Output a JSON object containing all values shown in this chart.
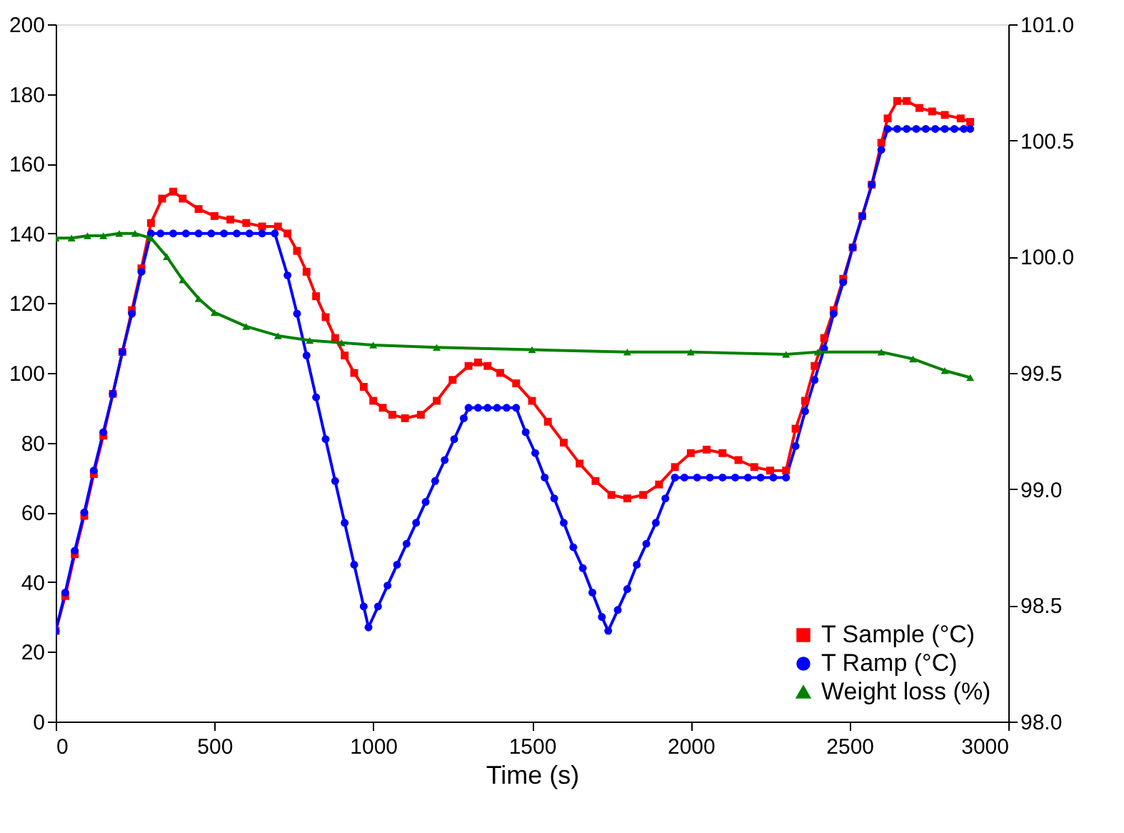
{
  "chart_data": {
    "type": "line",
    "xlabel": "Time (s)",
    "xlim": [
      0,
      3000
    ],
    "xticks": [
      0,
      500,
      1000,
      1500,
      2000,
      2500,
      3000
    ],
    "ylim": [
      0,
      200
    ],
    "yticks": [
      0,
      20,
      40,
      60,
      80,
      100,
      120,
      140,
      160,
      180,
      200
    ],
    "y2lim": [
      98,
      101
    ],
    "y2ticks": [
      {
        "value": 98,
        "label": "98.0"
      },
      {
        "value": 98.5,
        "label": "98.5"
      },
      {
        "value": 99,
        "label": "99.0"
      },
      {
        "value": 99.5,
        "label": "99.5"
      },
      {
        "value": 100,
        "label": "100.0"
      },
      {
        "value": 100.5,
        "label": "100.5"
      },
      {
        "value": 101,
        "label": "101.0"
      }
    ],
    "grid": false,
    "legend": "bottom right",
    "line_style": "solid",
    "series": [
      {
        "name": "T Sample (°C)",
        "color": "#ff0000",
        "marker": "square",
        "x": [
          0,
          30,
          60,
          90,
          120,
          150,
          180,
          210,
          240,
          270,
          300,
          335,
          370,
          400,
          450,
          500,
          550,
          600,
          650,
          700,
          730,
          760,
          790,
          820,
          850,
          880,
          910,
          940,
          970,
          1000,
          1030,
          1060,
          1100,
          1150,
          1200,
          1250,
          1300,
          1330,
          1360,
          1400,
          1450,
          1500,
          1550,
          1600,
          1650,
          1700,
          1750,
          1800,
          1850,
          1900,
          1950,
          2000,
          2050,
          2100,
          2150,
          2200,
          2250,
          2300,
          2330,
          2360,
          2390,
          2420,
          2450,
          2480,
          2510,
          2540,
          2570,
          2600,
          2620,
          2650,
          2680,
          2720,
          2760,
          2800,
          2850,
          2880
        ],
        "values": [
          26,
          36,
          48,
          59,
          71,
          82,
          94,
          106,
          118,
          130,
          143,
          150,
          152,
          150,
          147,
          145,
          144,
          143,
          142,
          142,
          140,
          135,
          129,
          122,
          116,
          110,
          105,
          100,
          96,
          92,
          90,
          88,
          87,
          88,
          92,
          98,
          102,
          103,
          102,
          100,
          97,
          92,
          86,
          80,
          74,
          69,
          65,
          64,
          65,
          68,
          73,
          77,
          78,
          77,
          75,
          73,
          72,
          72,
          84,
          92,
          102,
          110,
          118,
          127,
          136,
          145,
          154,
          166,
          173,
          178,
          178,
          176,
          175,
          174,
          173,
          172
        ]
      },
      {
        "name": "T Ramp (°C)",
        "color": "#0000ff",
        "marker": "circle",
        "x": [
          0,
          30,
          60,
          90,
          120,
          150,
          180,
          210,
          240,
          270,
          300,
          330,
          370,
          410,
          450,
          490,
          530,
          570,
          610,
          650,
          690,
          730,
          760,
          790,
          820,
          850,
          880,
          910,
          940,
          970,
          985,
          1015,
          1045,
          1075,
          1105,
          1135,
          1165,
          1195,
          1225,
          1255,
          1285,
          1300,
          1330,
          1360,
          1390,
          1420,
          1450,
          1480,
          1510,
          1540,
          1570,
          1600,
          1630,
          1660,
          1690,
          1720,
          1740,
          1770,
          1800,
          1830,
          1860,
          1890,
          1920,
          1950,
          1980,
          2020,
          2060,
          2100,
          2140,
          2180,
          2220,
          2260,
          2300,
          2330,
          2360,
          2390,
          2420,
          2450,
          2480,
          2510,
          2540,
          2570,
          2600,
          2620,
          2650,
          2680,
          2710,
          2740,
          2770,
          2800,
          2830,
          2860,
          2880
        ],
        "values": [
          26,
          37,
          49,
          60,
          72,
          83,
          94,
          106,
          117,
          129,
          140,
          140,
          140,
          140,
          140,
          140,
          140,
          140,
          140,
          140,
          140,
          128,
          117,
          105,
          93,
          81,
          69,
          57,
          45,
          33,
          27,
          33,
          39,
          45,
          51,
          57,
          63,
          69,
          75,
          81,
          87,
          90,
          90,
          90,
          90,
          90,
          90,
          83,
          77,
          70,
          64,
          57,
          50,
          44,
          37,
          30,
          26,
          32,
          38,
          45,
          51,
          57,
          64,
          70,
          70,
          70,
          70,
          70,
          70,
          70,
          70,
          70,
          70,
          79,
          89,
          98,
          107,
          117,
          126,
          136,
          145,
          154,
          164,
          170,
          170,
          170,
          170,
          170,
          170,
          170,
          170,
          170,
          170
        ]
      },
      {
        "name": "Weight loss (%)",
        "color": "#008000",
        "marker": "triangle",
        "axis": "y2",
        "x": [
          0,
          50,
          100,
          150,
          200,
          250,
          300,
          350,
          400,
          450,
          500,
          600,
          700,
          800,
          900,
          1000,
          1200,
          1500,
          1800,
          2000,
          2300,
          2400,
          2600,
          2700,
          2800,
          2880
        ],
        "values": [
          100.08,
          100.08,
          100.09,
          100.09,
          100.1,
          100.1,
          100.08,
          100.0,
          99.9,
          99.82,
          99.76,
          99.7,
          99.66,
          99.64,
          99.63,
          99.62,
          99.61,
          99.6,
          99.59,
          99.59,
          99.58,
          99.59,
          99.59,
          99.56,
          99.51,
          99.48
        ]
      }
    ]
  }
}
